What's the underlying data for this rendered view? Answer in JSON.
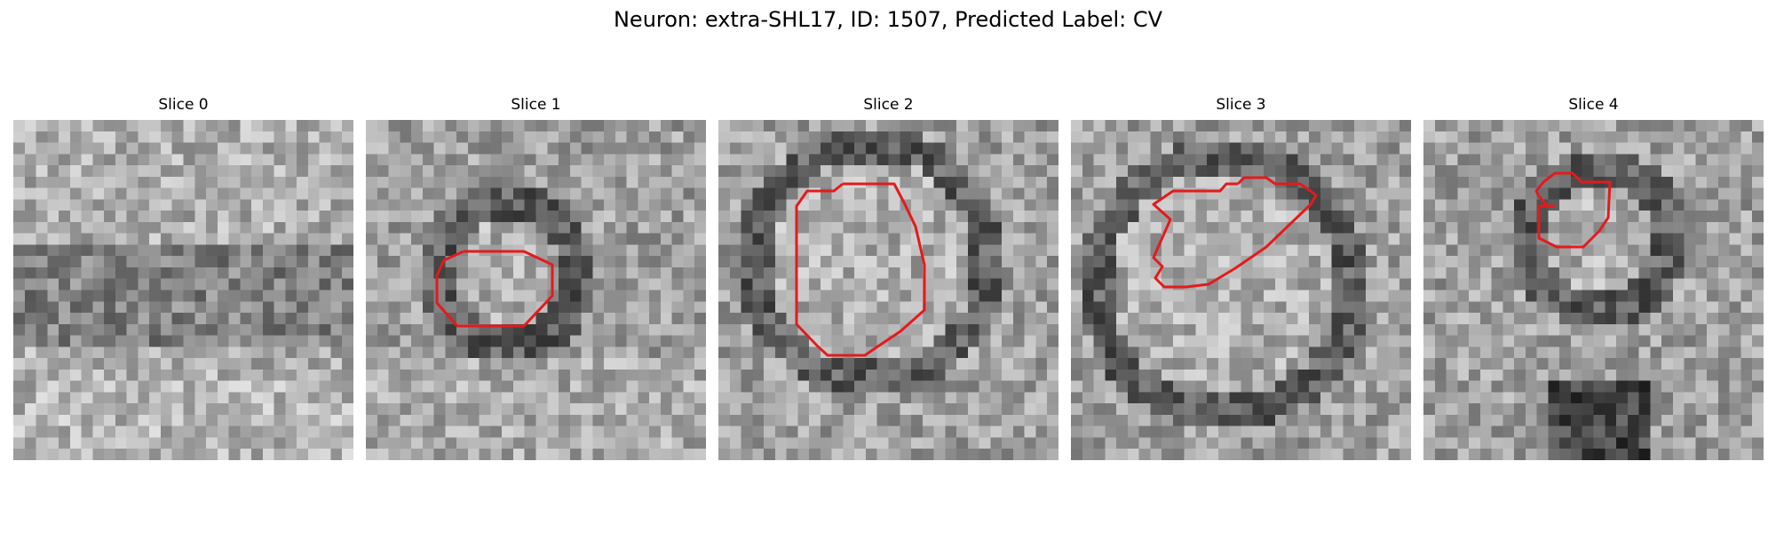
{
  "title": "Neuron: extra-SHL17, ID: 1507, Predicted Label: CV",
  "contour_color": "#e41a1c",
  "panels": [
    {
      "title": "Slice 0"
    },
    {
      "title": "Slice 1"
    },
    {
      "title": "Slice 2"
    },
    {
      "title": "Slice 3"
    },
    {
      "title": "Slice 4"
    }
  ]
}
